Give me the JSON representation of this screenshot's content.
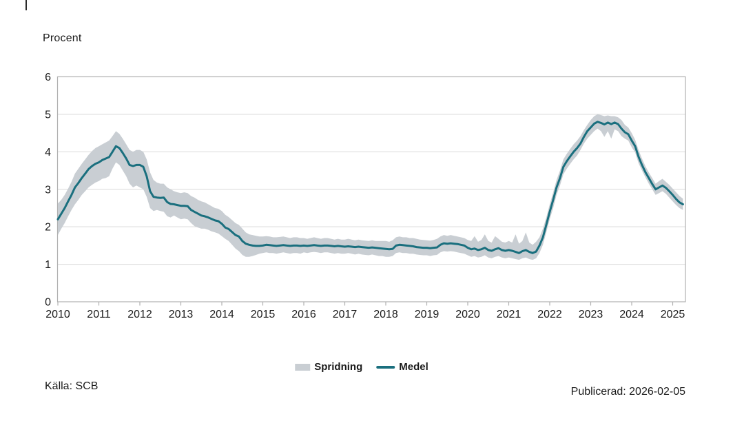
{
  "header": {
    "unit_label": "Procent"
  },
  "legend": {
    "items": [
      {
        "label": "Spridning",
        "swatch": "band-swatch"
      },
      {
        "label": "Medel",
        "swatch": "line-swatch"
      }
    ]
  },
  "footer": {
    "source": "Källa: SCB",
    "published": "Publicerad: 2026-02-05"
  },
  "colors": {
    "line": "#1a6f7e",
    "band": "#c9ced3",
    "grid": "#d9d9d9",
    "border": "#b0b0b0",
    "text": "#1a1a1a"
  },
  "chart_data": {
    "type": "line",
    "title": "Procent",
    "ylabel": "Procent",
    "xlabel": "",
    "x_unit": "month",
    "x_start": "2010-01",
    "x_end": "2025-04",
    "ylim": [
      0,
      6
    ],
    "y_ticks": [
      0,
      1,
      2,
      3,
      4,
      5,
      6
    ],
    "x_tick_years": [
      2010,
      2011,
      2012,
      2013,
      2014,
      2015,
      2016,
      2017,
      2018,
      2019,
      2020,
      2021,
      2022,
      2023,
      2024,
      2025
    ],
    "grid": "horizontal",
    "legend_position": "bottom-center",
    "series": [
      {
        "name": "Medel",
        "type": "line",
        "values": [
          2.2,
          2.35,
          2.5,
          2.68,
          2.85,
          3.05,
          3.17,
          3.3,
          3.42,
          3.54,
          3.62,
          3.68,
          3.72,
          3.78,
          3.82,
          3.86,
          4.0,
          4.15,
          4.1,
          3.97,
          3.82,
          3.65,
          3.62,
          3.65,
          3.65,
          3.6,
          3.35,
          2.95,
          2.8,
          2.78,
          2.77,
          2.78,
          2.66,
          2.61,
          2.6,
          2.58,
          2.56,
          2.56,
          2.55,
          2.45,
          2.4,
          2.35,
          2.3,
          2.28,
          2.25,
          2.21,
          2.17,
          2.15,
          2.08,
          1.98,
          1.94,
          1.86,
          1.78,
          1.74,
          1.62,
          1.55,
          1.52,
          1.5,
          1.49,
          1.49,
          1.5,
          1.52,
          1.51,
          1.5,
          1.49,
          1.5,
          1.51,
          1.5,
          1.49,
          1.5,
          1.5,
          1.49,
          1.5,
          1.49,
          1.5,
          1.51,
          1.5,
          1.49,
          1.5,
          1.5,
          1.49,
          1.48,
          1.49,
          1.48,
          1.47,
          1.48,
          1.47,
          1.46,
          1.47,
          1.46,
          1.45,
          1.44,
          1.45,
          1.44,
          1.43,
          1.42,
          1.41,
          1.4,
          1.41,
          1.5,
          1.52,
          1.51,
          1.5,
          1.49,
          1.48,
          1.46,
          1.45,
          1.44,
          1.44,
          1.43,
          1.44,
          1.45,
          1.52,
          1.56,
          1.55,
          1.56,
          1.55,
          1.54,
          1.52,
          1.5,
          1.44,
          1.4,
          1.42,
          1.38,
          1.4,
          1.44,
          1.38,
          1.36,
          1.4,
          1.43,
          1.38,
          1.36,
          1.38,
          1.36,
          1.33,
          1.3,
          1.35,
          1.38,
          1.33,
          1.3,
          1.34,
          1.5,
          1.72,
          2.05,
          2.4,
          2.72,
          3.05,
          3.3,
          3.6,
          3.75,
          3.88,
          4.0,
          4.1,
          4.22,
          4.4,
          4.55,
          4.65,
          4.75,
          4.8,
          4.77,
          4.73,
          4.78,
          4.74,
          4.78,
          4.74,
          4.62,
          4.52,
          4.47,
          4.3,
          4.15,
          3.87,
          3.65,
          3.46,
          3.3,
          3.14,
          3.0,
          3.05,
          3.1,
          3.04,
          2.95,
          2.85,
          2.74,
          2.65,
          2.6
        ]
      },
      {
        "name": "Spridning",
        "type": "band",
        "low": [
          1.78,
          1.95,
          2.1,
          2.28,
          2.45,
          2.6,
          2.72,
          2.85,
          2.95,
          3.05,
          3.12,
          3.18,
          3.22,
          3.28,
          3.3,
          3.35,
          3.55,
          3.72,
          3.65,
          3.5,
          3.35,
          3.15,
          3.05,
          3.1,
          3.05,
          3.0,
          2.8,
          2.5,
          2.42,
          2.45,
          2.42,
          2.4,
          2.28,
          2.25,
          2.3,
          2.25,
          2.2,
          2.22,
          2.2,
          2.1,
          2.02,
          1.98,
          1.95,
          1.95,
          1.92,
          1.88,
          1.85,
          1.82,
          1.75,
          1.68,
          1.62,
          1.52,
          1.42,
          1.35,
          1.25,
          1.2,
          1.2,
          1.22,
          1.25,
          1.28,
          1.3,
          1.32,
          1.3,
          1.3,
          1.28,
          1.3,
          1.32,
          1.3,
          1.28,
          1.3,
          1.3,
          1.28,
          1.32,
          1.3,
          1.32,
          1.33,
          1.32,
          1.3,
          1.32,
          1.32,
          1.3,
          1.28,
          1.3,
          1.28,
          1.28,
          1.3,
          1.28,
          1.26,
          1.28,
          1.26,
          1.25,
          1.24,
          1.26,
          1.24,
          1.22,
          1.22,
          1.2,
          1.2,
          1.22,
          1.3,
          1.32,
          1.3,
          1.3,
          1.28,
          1.28,
          1.26,
          1.25,
          1.24,
          1.24,
          1.22,
          1.24,
          1.25,
          1.32,
          1.35,
          1.34,
          1.35,
          1.34,
          1.32,
          1.3,
          1.28,
          1.24,
          1.2,
          1.22,
          1.18,
          1.2,
          1.24,
          1.18,
          1.16,
          1.2,
          1.22,
          1.18,
          1.16,
          1.18,
          1.16,
          1.14,
          1.12,
          1.16,
          1.18,
          1.14,
          1.12,
          1.16,
          1.3,
          1.52,
          1.85,
          2.2,
          2.5,
          2.85,
          3.1,
          3.4,
          3.55,
          3.68,
          3.8,
          3.9,
          4.05,
          4.22,
          4.35,
          4.45,
          4.55,
          4.62,
          4.55,
          4.4,
          4.55,
          4.35,
          4.6,
          4.55,
          4.42,
          4.35,
          4.3,
          4.12,
          3.98,
          3.7,
          3.5,
          3.32,
          3.15,
          3.0,
          2.85,
          2.9,
          2.95,
          2.88,
          2.78,
          2.68,
          2.58,
          2.5,
          2.45
        ],
        "high": [
          2.62,
          2.72,
          2.85,
          3.02,
          3.2,
          3.42,
          3.55,
          3.68,
          3.8,
          3.92,
          4.02,
          4.1,
          4.15,
          4.2,
          4.25,
          4.3,
          4.42,
          4.55,
          4.48,
          4.35,
          4.2,
          4.05,
          4.0,
          4.05,
          4.05,
          4.0,
          3.8,
          3.45,
          3.25,
          3.18,
          3.15,
          3.15,
          3.05,
          3.0,
          2.95,
          2.92,
          2.9,
          2.92,
          2.9,
          2.82,
          2.78,
          2.72,
          2.68,
          2.65,
          2.6,
          2.55,
          2.5,
          2.48,
          2.42,
          2.32,
          2.26,
          2.18,
          2.1,
          2.05,
          1.95,
          1.85,
          1.8,
          1.78,
          1.76,
          1.74,
          1.74,
          1.75,
          1.74,
          1.72,
          1.72,
          1.73,
          1.74,
          1.72,
          1.7,
          1.72,
          1.72,
          1.7,
          1.7,
          1.68,
          1.7,
          1.72,
          1.7,
          1.68,
          1.7,
          1.7,
          1.68,
          1.66,
          1.68,
          1.66,
          1.66,
          1.68,
          1.66,
          1.64,
          1.66,
          1.64,
          1.63,
          1.62,
          1.64,
          1.62,
          1.62,
          1.62,
          1.62,
          1.6,
          1.64,
          1.72,
          1.74,
          1.72,
          1.72,
          1.7,
          1.7,
          1.68,
          1.66,
          1.65,
          1.64,
          1.63,
          1.65,
          1.68,
          1.74,
          1.78,
          1.76,
          1.78,
          1.76,
          1.74,
          1.72,
          1.7,
          1.65,
          1.62,
          1.75,
          1.6,
          1.65,
          1.8,
          1.62,
          1.58,
          1.75,
          1.68,
          1.6,
          1.58,
          1.62,
          1.58,
          1.8,
          1.55,
          1.62,
          1.85,
          1.58,
          1.52,
          1.6,
          1.72,
          1.95,
          2.25,
          2.6,
          2.92,
          3.25,
          3.5,
          3.8,
          3.95,
          4.08,
          4.2,
          4.3,
          4.42,
          4.58,
          4.72,
          4.85,
          4.95,
          5.0,
          4.98,
          4.95,
          4.97,
          4.95,
          4.95,
          4.92,
          4.85,
          4.72,
          4.65,
          4.5,
          4.32,
          4.05,
          3.82,
          3.62,
          3.45,
          3.3,
          3.15,
          3.22,
          3.28,
          3.2,
          3.12,
          3.02,
          2.92,
          2.82,
          2.75
        ]
      }
    ]
  }
}
